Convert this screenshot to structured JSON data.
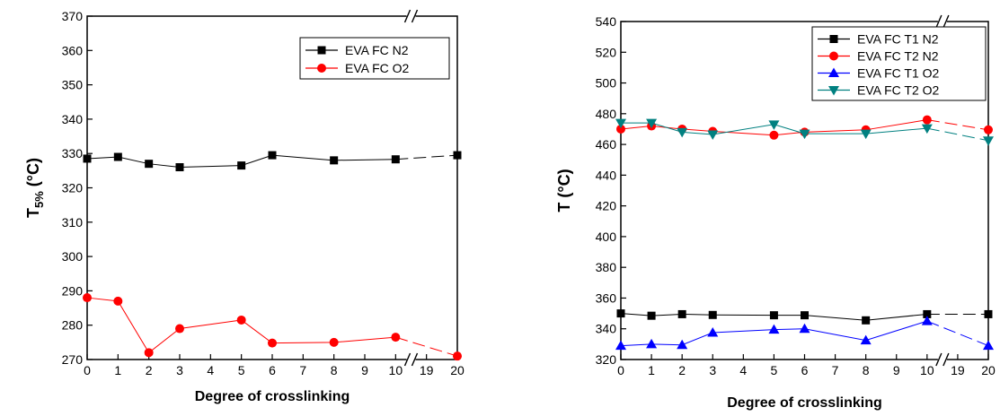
{
  "chart_data": [
    {
      "type": "line",
      "title": "",
      "xlabel": "Degree of crosslinking",
      "ylabel": "T",
      "ylabel_sub": "5%",
      "ylabel_unit": "(°C)",
      "x_ticks": [
        "0",
        "1",
        "2",
        "3",
        "4",
        "5",
        "6",
        "7",
        "8",
        "9",
        "10",
        "19",
        "20"
      ],
      "x_break_between": [
        "10",
        "19"
      ],
      "ylim": [
        270,
        370
      ],
      "y_ticks": [
        270,
        280,
        290,
        300,
        310,
        320,
        330,
        340,
        350,
        360,
        370
      ],
      "legend_position": "top-right",
      "series": [
        {
          "name": "EVA FC N2",
          "marker": "square",
          "color": "#000000",
          "x": [
            "0",
            "1",
            "2",
            "3",
            "5",
            "6",
            "8",
            "10",
            "20"
          ],
          "values": [
            328.5,
            329.0,
            327.0,
            326.0,
            326.5,
            329.5,
            328.0,
            328.3,
            329.5
          ]
        },
        {
          "name": "EVA FC O2",
          "marker": "circle",
          "color": "#ff0000",
          "x": [
            "0",
            "1",
            "2",
            "3",
            "5",
            "6",
            "8",
            "10",
            "20"
          ],
          "values": [
            288.0,
            287.0,
            272.0,
            279.0,
            281.5,
            274.8,
            275.0,
            276.5,
            271.0
          ]
        }
      ]
    },
    {
      "type": "line",
      "title": "",
      "xlabel": "Degree of crosslinking",
      "ylabel": "T",
      "ylabel_sub": "",
      "ylabel_unit": "(°C)",
      "x_ticks": [
        "0",
        "1",
        "2",
        "3",
        "4",
        "5",
        "6",
        "7",
        "8",
        "9",
        "10",
        "19",
        "20"
      ],
      "x_break_between": [
        "10",
        "19"
      ],
      "ylim": [
        320,
        540
      ],
      "y_ticks": [
        320,
        340,
        360,
        380,
        400,
        420,
        440,
        460,
        480,
        500,
        520,
        540
      ],
      "legend_position": "top-right",
      "series": [
        {
          "name": "EVA FC T1 N2",
          "marker": "square",
          "color": "#000000",
          "x": [
            "0",
            "1",
            "2",
            "3",
            "5",
            "6",
            "8",
            "10",
            "20"
          ],
          "values": [
            350,
            348.5,
            349.5,
            349,
            348.8,
            348.8,
            345.5,
            349.5,
            349.5
          ]
        },
        {
          "name": "EVA FC T2 N2",
          "marker": "circle",
          "color": "#ff0000",
          "x": [
            "0",
            "1",
            "2",
            "3",
            "5",
            "6",
            "8",
            "10",
            "20"
          ],
          "values": [
            470,
            472,
            470,
            468.5,
            466,
            468,
            469.5,
            476,
            469.5
          ]
        },
        {
          "name": "EVA FC T1 O2",
          "marker": "triangle-up",
          "color": "#0000ff",
          "x": [
            "0",
            "1",
            "2",
            "3",
            "5",
            "6",
            "8",
            "10",
            "20"
          ],
          "values": [
            329,
            330,
            329.5,
            337.5,
            339.5,
            340,
            332.5,
            345,
            329
          ]
        },
        {
          "name": "EVA FC T2 O2",
          "marker": "triangle-down",
          "color": "#008080",
          "x": [
            "0",
            "1",
            "2",
            "3",
            "5",
            "6",
            "8",
            "10",
            "20"
          ],
          "values": [
            474,
            474,
            468,
            466.5,
            473,
            467,
            467,
            470.5,
            462.5
          ]
        }
      ]
    }
  ]
}
